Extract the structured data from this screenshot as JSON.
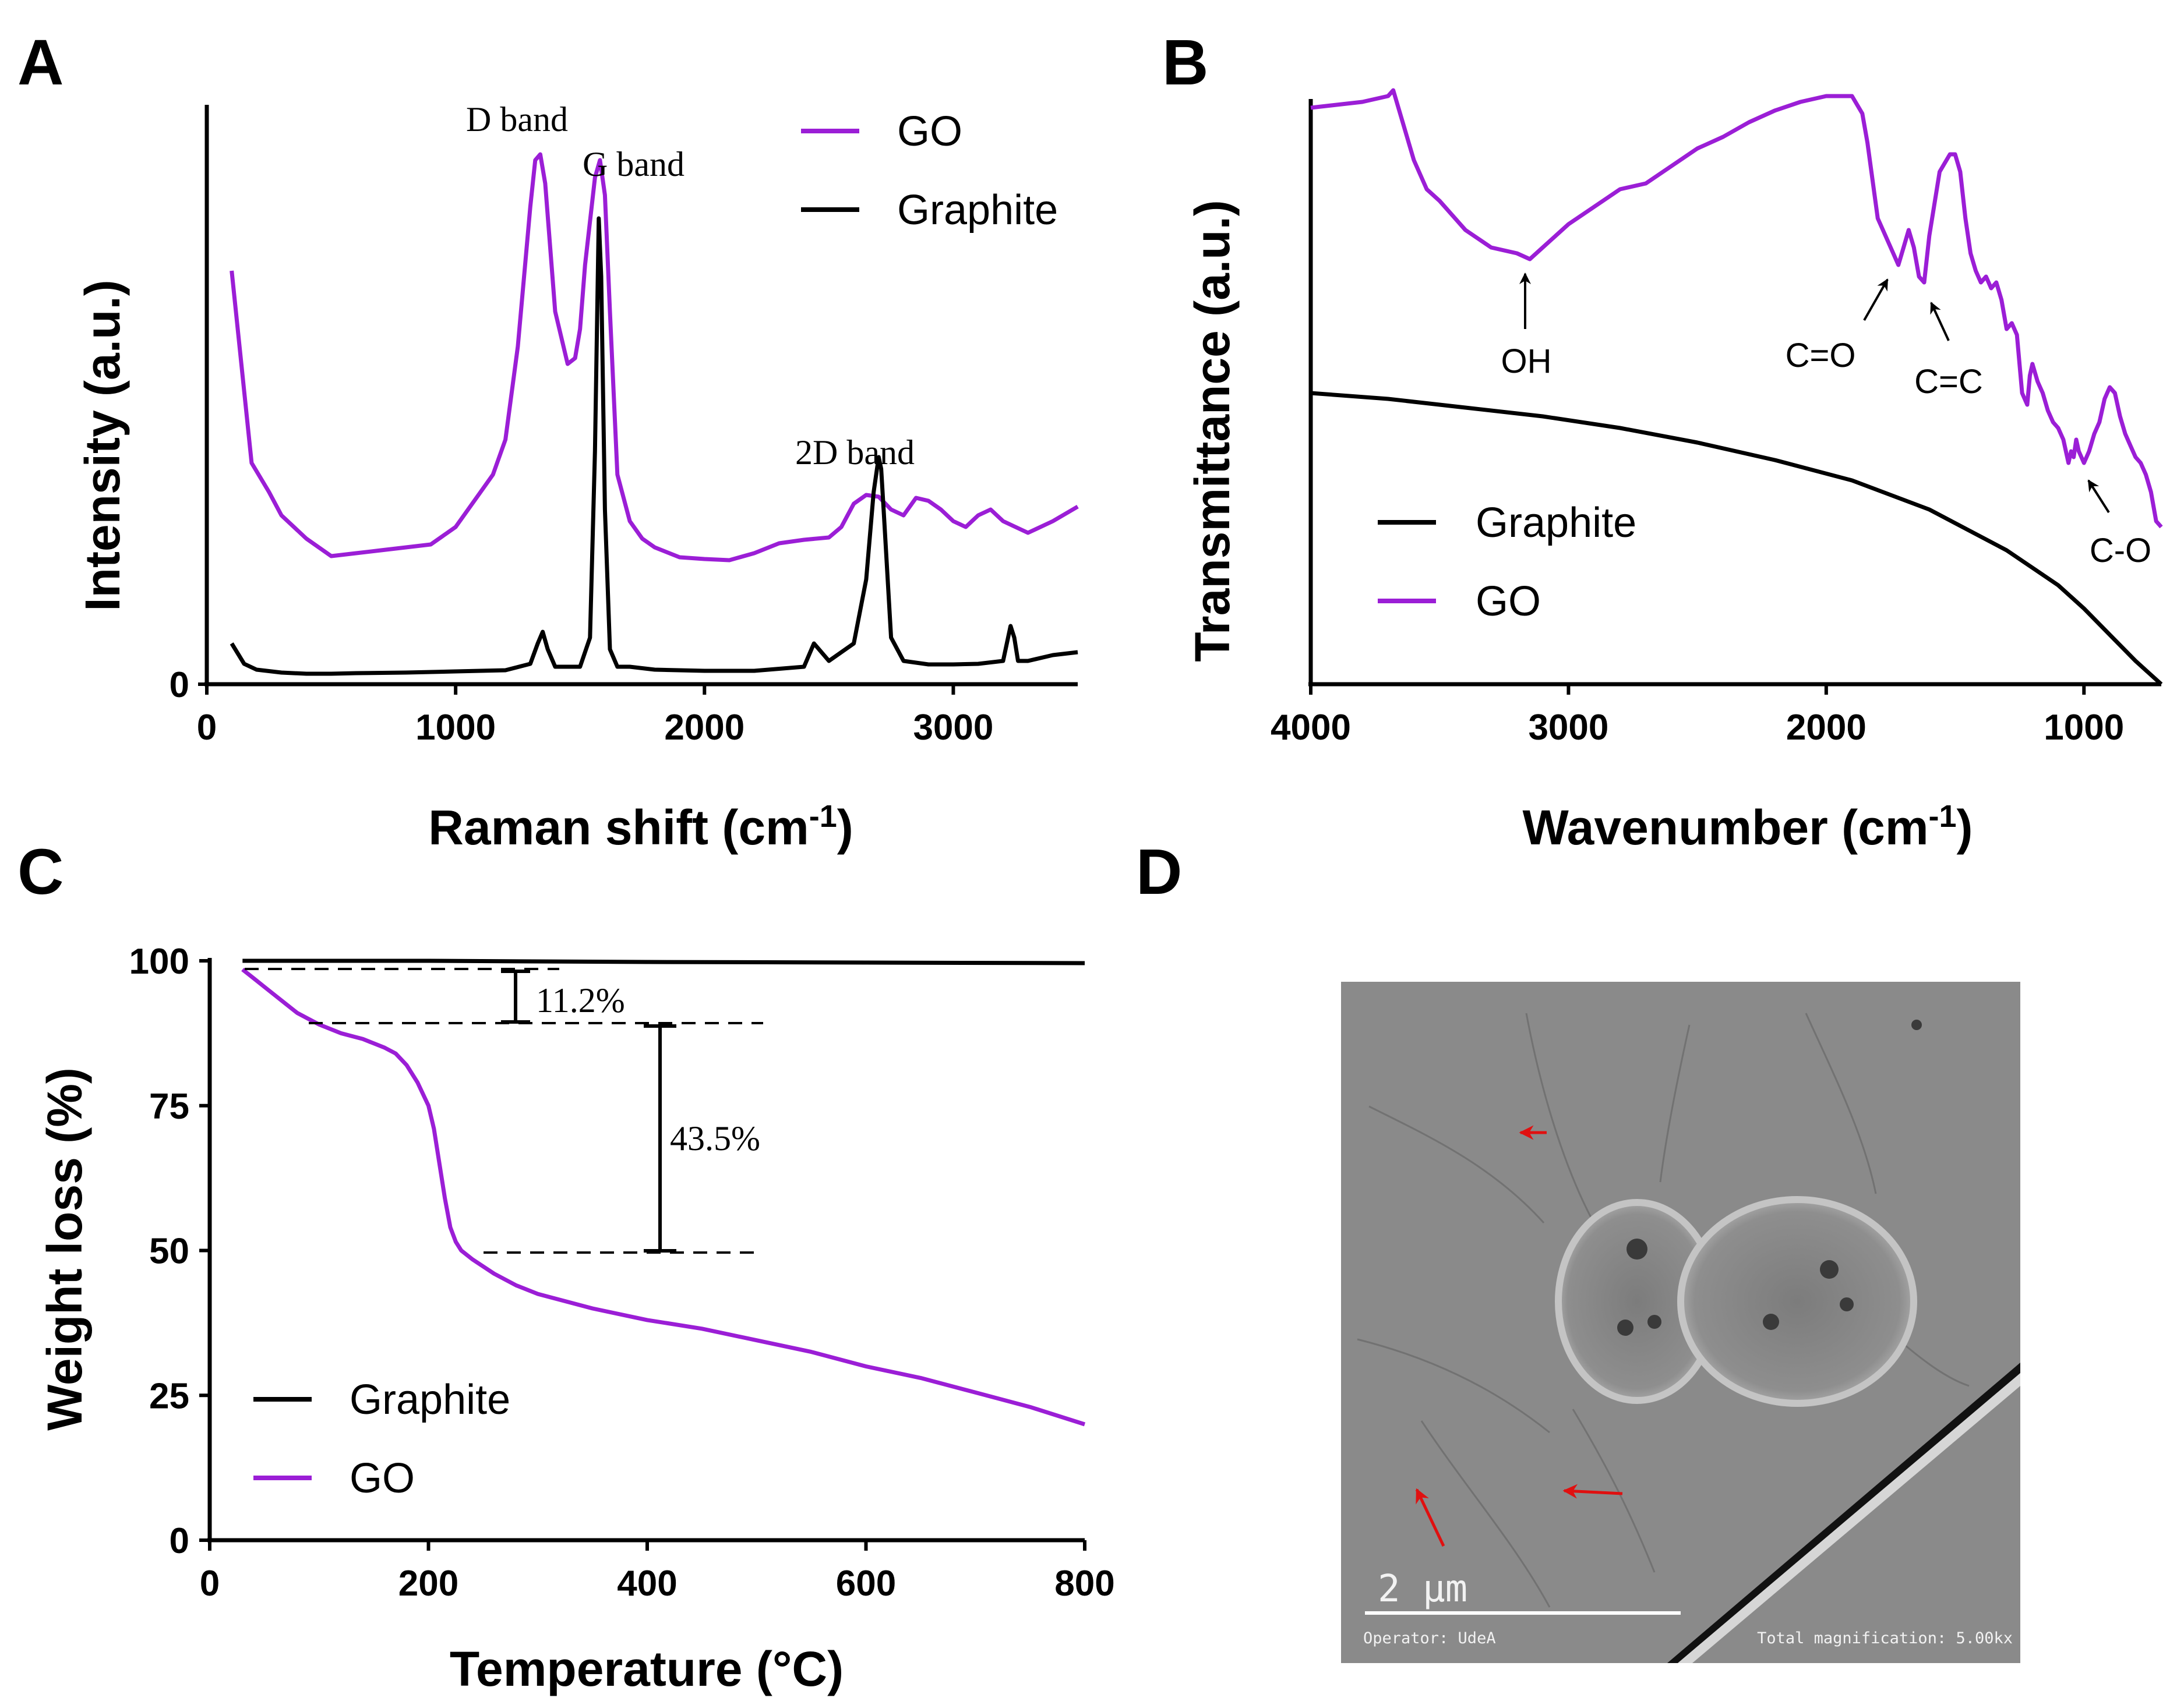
{
  "colors": {
    "go": "#9b1ed6",
    "graphite": "#000000",
    "arrow_red": "#e01010"
  },
  "panel_labels": {
    "a": "A",
    "b": "B",
    "c": "C",
    "d": "D"
  },
  "chart_data": [
    {
      "id": "A",
      "type": "line",
      "title": "",
      "xlabel": "Raman shift (cm",
      "xlabel_sup": "-1",
      "xlabel_close": ")",
      "ylabel": "Intensity (a.u.)",
      "xlim": [
        0,
        3500
      ],
      "ylim": [
        0,
        100
      ],
      "x_ticks": [
        0,
        1000,
        2000,
        3000
      ],
      "x_tick_labels": [
        "0",
        "1000",
        "2000",
        "3000"
      ],
      "y_tick_labels": [
        "0"
      ],
      "legend": [
        "GO",
        "Graphite"
      ],
      "legend_position": "top-right",
      "annotations": [
        "D band",
        "G band",
        "2D band"
      ],
      "series": [
        {
          "name": "GO",
          "color": "#9b1ed6",
          "x": [
            100,
            180,
            250,
            300,
            400,
            500,
            600,
            700,
            800,
            900,
            1000,
            1100,
            1150,
            1200,
            1250,
            1300,
            1320,
            1340,
            1360,
            1400,
            1450,
            1480,
            1500,
            1520,
            1560,
            1580,
            1600,
            1620,
            1650,
            1700,
            1750,
            1800,
            1900,
            2000,
            2100,
            2200,
            2300,
            2400,
            2500,
            2550,
            2600,
            2650,
            2700,
            2750,
            2800,
            2850,
            2900,
            2950,
            3000,
            3050,
            3100,
            3150,
            3200,
            3250,
            3300,
            3400,
            3500
          ],
          "y": [
            71,
            38,
            33,
            29,
            25,
            22,
            22.5,
            23,
            23.5,
            24,
            27,
            33,
            36,
            42,
            58,
            82,
            90,
            91,
            86,
            64,
            55,
            56,
            61,
            72,
            87,
            90,
            84,
            64,
            36,
            28,
            25,
            23.5,
            21.8,
            21.5,
            21.3,
            22.5,
            24.2,
            24.8,
            25.2,
            27,
            31,
            32.5,
            32.2,
            30,
            29,
            32,
            31.5,
            30,
            28,
            27,
            29,
            30,
            28,
            27,
            26,
            28,
            30.5
          ]
        },
        {
          "name": "Graphite",
          "color": "#000000",
          "x": [
            100,
            150,
            200,
            300,
            400,
            500,
            600,
            800,
            1000,
            1200,
            1300,
            1330,
            1350,
            1370,
            1400,
            1500,
            1540,
            1560,
            1575,
            1585,
            1600,
            1620,
            1650,
            1700,
            1800,
            2000,
            2200,
            2400,
            2440,
            2460,
            2500,
            2600,
            2650,
            2680,
            2700,
            2710,
            2720,
            2750,
            2800,
            2900,
            3000,
            3100,
            3200,
            3230,
            3245,
            3260,
            3300,
            3400,
            3500
          ],
          "y": [
            7,
            3.5,
            2.5,
            2,
            1.8,
            1.8,
            1.9,
            2,
            2.2,
            2.4,
            3.5,
            7,
            9,
            6,
            3,
            3,
            8,
            40,
            80,
            70,
            30,
            6,
            3,
            3,
            2.5,
            2.3,
            2.3,
            3,
            7,
            6,
            4,
            7,
            18,
            33,
            39,
            37,
            30,
            8,
            4,
            3.4,
            3.4,
            3.5,
            4,
            10,
            8,
            4,
            4,
            5,
            5.5
          ]
        }
      ]
    },
    {
      "id": "B",
      "type": "line",
      "title": "",
      "xlabel": "Wavenumber (cm",
      "xlabel_sup": "-1",
      "xlabel_close": ")",
      "ylabel": "Transmittance (a.u.)",
      "xlim": [
        4000,
        700
      ],
      "ylim": [
        0,
        100
      ],
      "x_ticks": [
        4000,
        3000,
        2000,
        1000
      ],
      "x_tick_labels": [
        "4000",
        "3000",
        "2000",
        "1000"
      ],
      "legend": [
        "Graphite",
        "GO"
      ],
      "legend_position": "bottom-left",
      "annotations": [
        "OH",
        "C=O",
        "C=C",
        "C-O"
      ],
      "series": [
        {
          "name": "GO",
          "color": "#9b1ed6",
          "x": [
            4000,
            3900,
            3800,
            3700,
            3680,
            3600,
            3550,
            3500,
            3400,
            3300,
            3200,
            3150,
            3100,
            3000,
            2900,
            2800,
            2700,
            2600,
            2500,
            2400,
            2300,
            2200,
            2100,
            2000,
            1900,
            1860,
            1840,
            1800,
            1780,
            1740,
            1720,
            1700,
            1680,
            1660,
            1640,
            1620,
            1600,
            1560,
            1520,
            1500,
            1480,
            1460,
            1440,
            1420,
            1400,
            1380,
            1360,
            1340,
            1320,
            1300,
            1280,
            1260,
            1240,
            1220,
            1210,
            1200,
            1180,
            1160,
            1140,
            1120,
            1100,
            1080,
            1060,
            1050,
            1040,
            1030,
            1020,
            1000,
            980,
            960,
            940,
            920,
            900,
            880,
            860,
            840,
            820,
            800,
            780,
            760,
            740,
            720,
            700
          ],
          "y": [
            99,
            99.5,
            100,
            101,
            102,
            90,
            85,
            83,
            78,
            75,
            74,
            73,
            75,
            79,
            82,
            85,
            86,
            89,
            92,
            94,
            96.5,
            98.5,
            100,
            101,
            101,
            98,
            93,
            80,
            78,
            74,
            72,
            75,
            78,
            75,
            70,
            69,
            77,
            88,
            91,
            91,
            88,
            80,
            74,
            71,
            69,
            70,
            68,
            69,
            66,
            61,
            62,
            60,
            50,
            48,
            53,
            55,
            52,
            50,
            47,
            45,
            44,
            42,
            38,
            40,
            39,
            42,
            40,
            38,
            40,
            43,
            45,
            49,
            51,
            50,
            46,
            43,
            41,
            39,
            38,
            36,
            33,
            28,
            27
          ]
        },
        {
          "name": "Graphite",
          "color": "#000000",
          "x": [
            4000,
            3700,
            3400,
            3100,
            2800,
            2500,
            2200,
            1900,
            1600,
            1300,
            1200,
            1100,
            1000,
            900,
            800,
            700
          ],
          "y": [
            50,
            49,
            47.5,
            46,
            44,
            41.5,
            38.5,
            35,
            30,
            23,
            20,
            17,
            13,
            8.5,
            4,
            0
          ]
        }
      ]
    },
    {
      "id": "C",
      "type": "line",
      "title": "",
      "xlabel": "Temperature (°C)",
      "ylabel": "Weight loss (%)",
      "xlim": [
        0,
        800
      ],
      "ylim": [
        0,
        100
      ],
      "x_ticks": [
        0,
        200,
        400,
        600,
        800
      ],
      "x_tick_labels": [
        "0",
        "200",
        "400",
        "600",
        "800"
      ],
      "y_ticks": [
        0,
        25,
        50,
        75,
        100
      ],
      "y_tick_labels": [
        "0",
        "25",
        "50",
        "75",
        "100"
      ],
      "legend": [
        "Graphite",
        "GO"
      ],
      "legend_position": "bottom-left",
      "annotations": [
        "11.2%",
        "43.5%"
      ],
      "series": [
        {
          "name": "Graphite",
          "color": "#000000",
          "x": [
            30,
            200,
            400,
            600,
            800
          ],
          "y": [
            100,
            100,
            99.8,
            99.7,
            99.6
          ]
        },
        {
          "name": "GO",
          "color": "#9b1ed6",
          "x": [
            30,
            40,
            50,
            60,
            70,
            80,
            90,
            100,
            120,
            140,
            160,
            170,
            180,
            190,
            200,
            205,
            210,
            215,
            220,
            225,
            230,
            240,
            260,
            280,
            300,
            350,
            400,
            450,
            500,
            550,
            600,
            650,
            700,
            750,
            800
          ],
          "y": [
            98.5,
            97,
            95.5,
            94,
            92.5,
            91,
            90,
            89,
            87.5,
            86.5,
            85,
            84,
            82,
            79,
            75,
            71,
            65,
            59,
            54,
            51.5,
            50,
            48.5,
            46,
            44,
            42.5,
            40,
            38,
            36.5,
            34.5,
            32.5,
            30,
            28,
            25.5,
            23,
            20
          ]
        }
      ]
    }
  ],
  "panel_d": {
    "scale_bar_label": "2 μm",
    "operator": "Operator: UdeA",
    "magnification": "Total magnification: 5.00kx"
  }
}
